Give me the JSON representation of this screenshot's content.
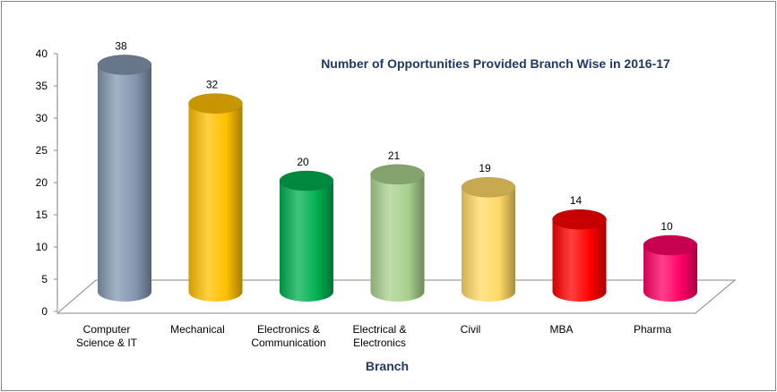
{
  "chart_data": {
    "type": "bar",
    "title": "Number of Opportunities Provided Branch Wise in 2016-17",
    "xlabel": "Branch",
    "ylabel": "",
    "ylim": [
      0,
      40
    ],
    "yticks": [
      0,
      5,
      10,
      15,
      20,
      25,
      30,
      35,
      40
    ],
    "categories": [
      [
        "Computer",
        "Science & IT"
      ],
      [
        "Mechanical"
      ],
      [
        "Electronics &",
        "Communication"
      ],
      [
        "Electrical &",
        "Electronics"
      ],
      [
        "Civil"
      ],
      [
        "MBA"
      ],
      [
        "Pharma"
      ]
    ],
    "values": [
      38,
      32,
      20,
      21,
      19,
      14,
      10
    ],
    "colors": [
      "#8497b0",
      "#ffc000",
      "#00b050",
      "#a9d18e",
      "#ffd966",
      "#ff0000",
      "#ff0066"
    ],
    "bar_shape": "3d-cylinder",
    "grid": false,
    "legend": "none"
  }
}
